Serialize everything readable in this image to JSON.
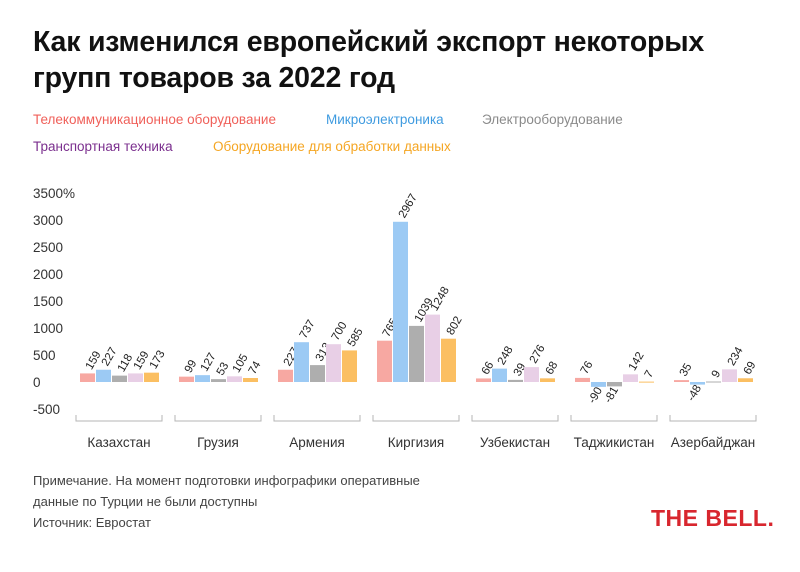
{
  "title": "Как изменился европейский экспорт некоторых групп товаров за 2022 год",
  "note": "Примечание. На момент подготовки инфографики оперативные данные по Турции не были доступны",
  "source": "Источник: Евростат",
  "logo": "THE BELL.",
  "colors": {
    "telecom": "#f47a72",
    "micro": "#4ea3e0",
    "electro": "#8a8a8a",
    "transport": "#7b2f8e",
    "dataproc": "#f5a623"
  },
  "chart_data": {
    "type": "bar",
    "title": "Как изменился европейский экспорт некоторых групп товаров за 2022 год",
    "xlabel": "",
    "ylabel": "",
    "ylim": [
      -500,
      3500
    ],
    "yticks": [
      -500,
      0,
      500,
      1000,
      1500,
      2000,
      2500,
      3000,
      3500
    ],
    "ytick_labels": [
      "-500",
      "0",
      "500",
      "1000",
      "1500",
      "2000",
      "2500",
      "3000",
      "3500%"
    ],
    "grid": false,
    "legend_position": "top-left",
    "categories": [
      "Казахстан",
      "Грузия",
      "Армения",
      "Киргизия",
      "Узбекистан",
      "Таджикистан",
      "Азербайджан"
    ],
    "series": [
      {
        "name": "Телекоммуникационное оборудование",
        "color": "#f7a8a2",
        "legend_color": "#f0605a",
        "values": [
          159,
          99,
          227,
          765,
          66,
          76,
          35
        ]
      },
      {
        "name": "Микроэлектроника",
        "color": "#9ccaf4",
        "legend_color": "#3f9be0",
        "values": [
          227,
          127,
          737,
          2967,
          248,
          -90,
          -48
        ]
      },
      {
        "name": "Электрооборудование",
        "color": "#aeaeae",
        "legend_color": "#8a8a8a",
        "values": [
          118,
          53,
          313,
          1039,
          39,
          -81,
          9
        ]
      },
      {
        "name": "Транспортная техника",
        "color": "#e8cfe6",
        "legend_color": "#7b2f8e",
        "values": [
          159,
          105,
          700,
          1248,
          276,
          142,
          234
        ]
      },
      {
        "name": "Оборудование для обработки данных",
        "color": "#fbbf62",
        "legend_color": "#f5a623",
        "values": [
          173,
          74,
          585,
          802,
          68,
          7,
          69
        ]
      }
    ]
  }
}
